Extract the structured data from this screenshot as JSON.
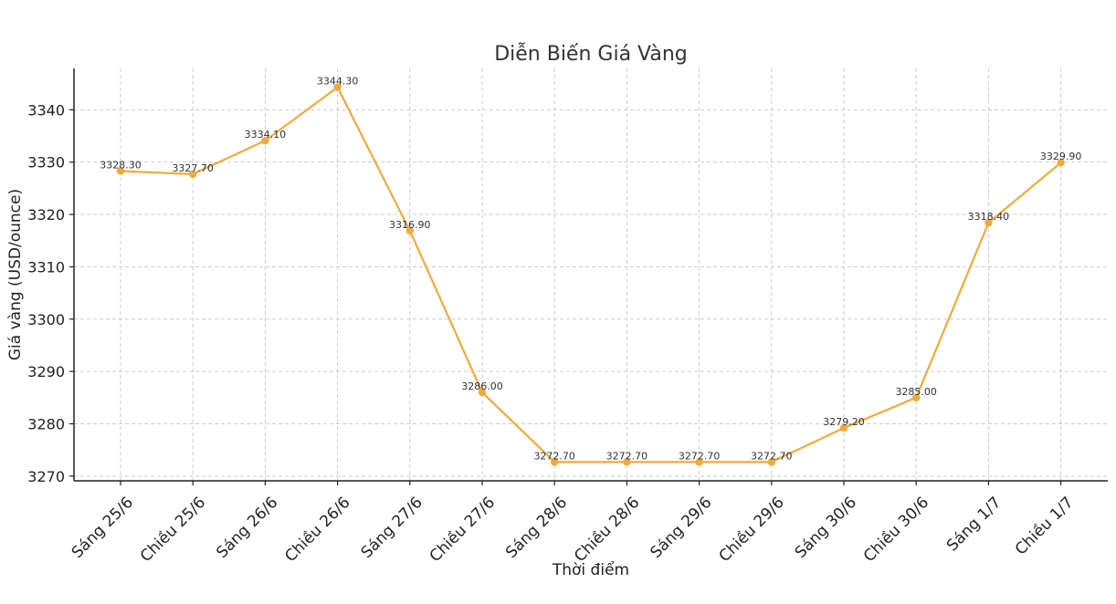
{
  "chart_data": {
    "type": "line",
    "title": "Diễn Biến Giá Vàng",
    "xlabel": "Thời điểm",
    "ylabel": "Giá vàng (USD/ounce)",
    "categories": [
      "Sáng 25/6",
      "Chiều 25/6",
      "Sáng 26/6",
      "Chiều 26/6",
      "Sáng 27/6",
      "Chiều 27/6",
      "Sáng 28/6",
      "Chiều 28/6",
      "Sáng 29/6",
      "Chiều 29/6",
      "Sáng 30/6",
      "Chiều 30/6",
      "Sáng 1/7",
      "Chiều 1/7"
    ],
    "series": [
      {
        "values": [
          3328.3,
          3327.7,
          3334.1,
          3344.3,
          3316.9,
          3286.0,
          3272.7,
          3272.7,
          3272.7,
          3272.7,
          3279.2,
          3285.0,
          3318.4,
          3329.9
        ],
        "labels": [
          "3328.30",
          "3327.70",
          "3334.10",
          "3344.30",
          "3316.90",
          "3286.00",
          "3272.70",
          "3272.70",
          "3272.70",
          "3272.70",
          "3279.20",
          "3285.00",
          "3318.40",
          "3329.90"
        ],
        "color": "#F0AA3C"
      }
    ],
    "yticks": [
      3270,
      3280,
      3290,
      3300,
      3310,
      3320,
      3330,
      3340
    ],
    "ylim": [
      3269.1,
      3347.9
    ],
    "grid": true,
    "legend": "none"
  }
}
